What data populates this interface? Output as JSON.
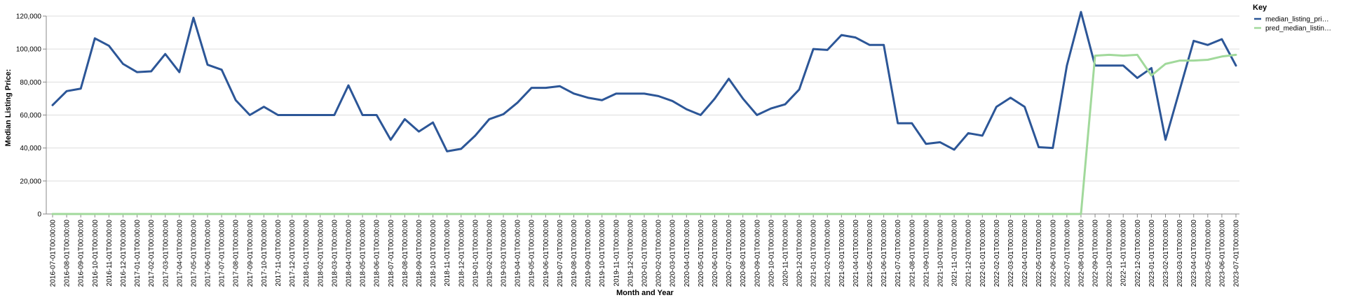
{
  "chart_data": {
    "type": "line",
    "xlabel": "Month and Year",
    "ylabel": "Median Listing Price:",
    "ylim": [
      0,
      120000
    ],
    "yticks": [
      "0",
      "20,000",
      "40,000",
      "60,000",
      "80,000",
      "100,000",
      "120,000"
    ],
    "grid": true,
    "legend_title": "Key",
    "legend_placement": "top-right",
    "x": [
      "2016-07-01T00:00:00",
      "2016-08-01T00:00:00",
      "2016-09-01T00:00:00",
      "2016-10-01T00:00:00",
      "2016-11-01T00:00:00",
      "2016-12-01T00:00:00",
      "2017-01-01T00:00:00",
      "2017-02-01T00:00:00",
      "2017-03-01T00:00:00",
      "2017-04-01T00:00:00",
      "2017-05-01T00:00:00",
      "2017-06-01T00:00:00",
      "2017-07-01T00:00:00",
      "2017-08-01T00:00:00",
      "2017-09-01T00:00:00",
      "2017-10-01T00:00:00",
      "2017-11-01T00:00:00",
      "2017-12-01T00:00:00",
      "2018-01-01T00:00:00",
      "2018-02-01T00:00:00",
      "2018-03-01T00:00:00",
      "2018-04-01T00:00:00",
      "2018-05-01T00:00:00",
      "2018-06-01T00:00:00",
      "2018-07-01T00:00:00",
      "2018-08-01T00:00:00",
      "2018-09-01T00:00:00",
      "2018-10-01T00:00:00",
      "2018-11-01T00:00:00",
      "2018-12-01T00:00:00",
      "2019-01-01T00:00:00",
      "2019-02-01T00:00:00",
      "2019-03-01T00:00:00",
      "2019-04-01T00:00:00",
      "2019-05-01T00:00:00",
      "2019-06-01T00:00:00",
      "2019-07-01T00:00:00",
      "2019-08-01T00:00:00",
      "2019-09-01T00:00:00",
      "2019-10-01T00:00:00",
      "2019-11-01T00:00:00",
      "2019-12-01T00:00:00",
      "2020-01-01T00:00:00",
      "2020-02-01T00:00:00",
      "2020-03-01T00:00:00",
      "2020-04-01T00:00:00",
      "2020-05-01T00:00:00",
      "2020-06-01T00:00:00",
      "2020-07-01T00:00:00",
      "2020-08-01T00:00:00",
      "2020-09-01T00:00:00",
      "2020-10-01T00:00:00",
      "2020-11-01T00:00:00",
      "2020-12-01T00:00:00",
      "2021-01-01T00:00:00",
      "2021-02-01T00:00:00",
      "2021-03-01T00:00:00",
      "2021-04-01T00:00:00",
      "2021-05-01T00:00:00",
      "2021-06-01T00:00:00",
      "2021-07-01T00:00:00",
      "2021-08-01T00:00:00",
      "2021-09-01T00:00:00",
      "2021-10-01T00:00:00",
      "2021-11-01T00:00:00",
      "2021-12-01T00:00:00",
      "2022-01-01T00:00:00",
      "2022-02-01T00:00:00",
      "2022-03-01T00:00:00",
      "2022-04-01T00:00:00",
      "2022-05-01T00:00:00",
      "2022-06-01T00:00:00",
      "2022-07-01T00:00:00",
      "2022-08-01T00:00:00",
      "2022-09-01T00:00:00",
      "2022-10-01T00:00:00",
      "2022-11-01T00:00:00",
      "2022-12-01T00:00:00",
      "2023-01-01T00:00:00",
      "2023-02-01T00:00:00",
      "2023-03-01T00:00:00",
      "2023-04-01T00:00:00",
      "2023-05-01T00:00:00",
      "2023-06-01T00:00:00",
      "2023-07-01T00:00:00"
    ],
    "series": [
      {
        "name": "median_listing_pri…",
        "color": "#2c5697",
        "values": [
          66000,
          74500,
          76000,
          106500,
          102000,
          91000,
          86000,
          86500,
          97000,
          86000,
          119000,
          90500,
          87500,
          69000,
          60000,
          65000,
          60000,
          60000,
          60000,
          60000,
          60000,
          78000,
          60000,
          60000,
          45000,
          57500,
          50000,
          55500,
          38000,
          39500,
          47500,
          57500,
          60500,
          67500,
          76500,
          76500,
          77500,
          73000,
          70500,
          69000,
          73000,
          73000,
          73000,
          71500,
          68500,
          63500,
          60000,
          69900,
          82000,
          70000,
          60000,
          64000,
          66500,
          75500,
          100000,
          99500,
          108500,
          107000,
          102500,
          102500,
          55000,
          55000,
          42500,
          43500,
          39000,
          49000,
          47500,
          65000,
          70500,
          65000,
          40500,
          40000,
          90000,
          122500,
          90000,
          90000,
          90000,
          82500,
          88500,
          45000,
          75000,
          105000,
          102500,
          106000,
          90000
        ]
      },
      {
        "name": "pred_median_listin…",
        "color": "#a1d99b",
        "values": [
          0,
          0,
          0,
          0,
          0,
          0,
          0,
          0,
          0,
          0,
          0,
          0,
          0,
          0,
          0,
          0,
          0,
          0,
          0,
          0,
          0,
          0,
          0,
          0,
          0,
          0,
          0,
          0,
          0,
          0,
          0,
          0,
          0,
          0,
          0,
          0,
          0,
          0,
          0,
          0,
          0,
          0,
          0,
          0,
          0,
          0,
          0,
          0,
          0,
          0,
          0,
          0,
          0,
          0,
          0,
          0,
          0,
          0,
          0,
          0,
          0,
          0,
          0,
          0,
          0,
          0,
          0,
          0,
          0,
          0,
          0,
          0,
          0,
          0,
          96000,
          96500,
          96000,
          96500,
          84000,
          91000,
          93000,
          93000,
          93500,
          95500,
          96500
        ]
      }
    ]
  }
}
